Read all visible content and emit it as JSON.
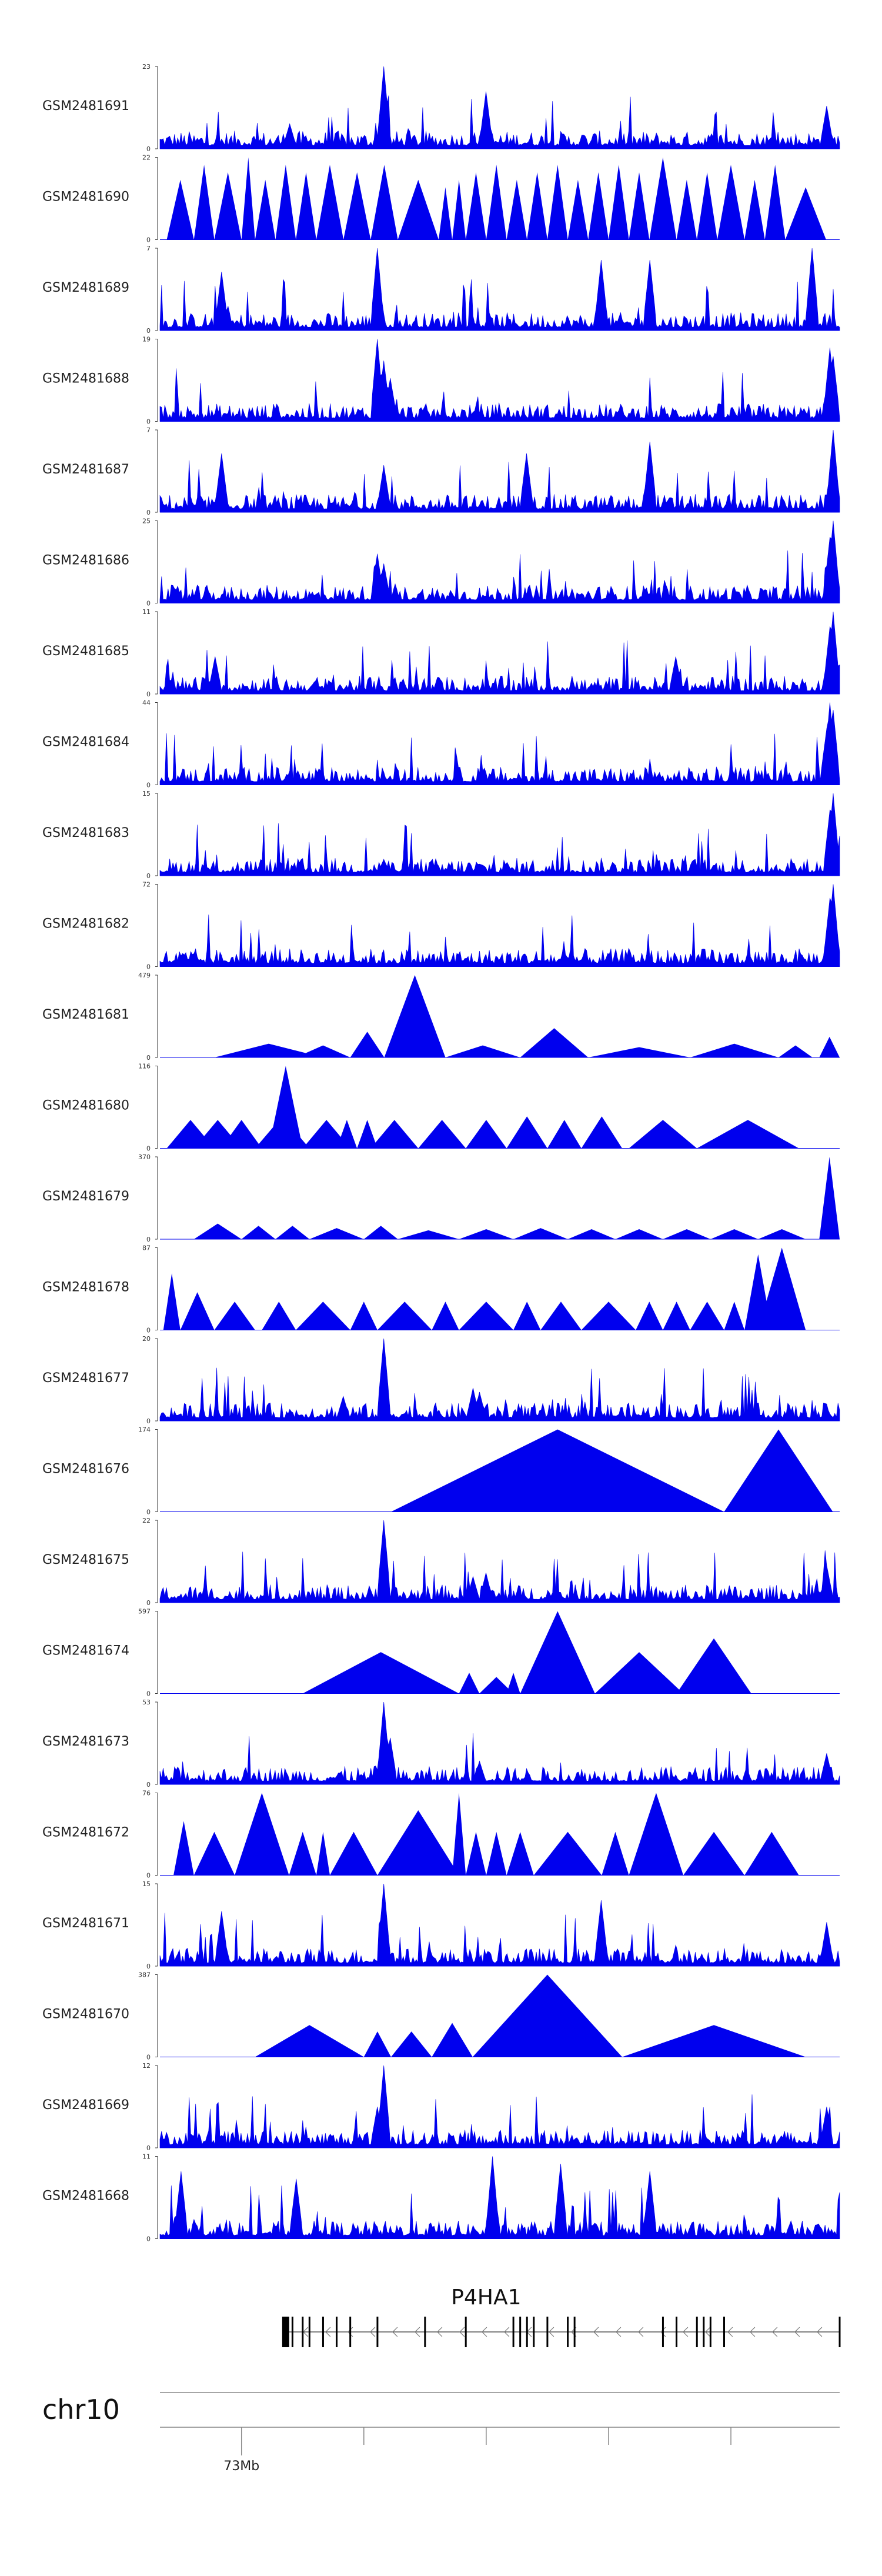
{
  "colors": {
    "signal": "#0000ee",
    "axis": "#333333",
    "gene": "#000000"
  },
  "chart_data": {
    "type": "area",
    "tracks": [
      {
        "name": "GSM2481691",
        "ymax": "23",
        "ymin": "0",
        "style": "dense",
        "peaks": [
          [
            0.33,
            23
          ],
          [
            0.46,
            3
          ],
          [
            0.19,
            7
          ],
          [
            0.48,
            16
          ],
          [
            0.98,
            12
          ]
        ]
      },
      {
        "name": "GSM2481690",
        "ymax": "22",
        "ymin": "0",
        "style": "tri",
        "segments": [
          [
            0.01,
            0.05,
            16
          ],
          [
            0.05,
            0.08,
            20
          ],
          [
            0.08,
            0.12,
            18
          ],
          [
            0.12,
            0.14,
            22
          ],
          [
            0.14,
            0.17,
            16
          ],
          [
            0.17,
            0.2,
            20
          ],
          [
            0.2,
            0.23,
            18
          ],
          [
            0.23,
            0.27,
            20
          ],
          [
            0.27,
            0.31,
            18
          ],
          [
            0.31,
            0.35,
            20
          ],
          [
            0.35,
            0.41,
            16
          ],
          [
            0.41,
            0.43,
            14
          ],
          [
            0.43,
            0.45,
            16
          ],
          [
            0.45,
            0.48,
            18
          ],
          [
            0.48,
            0.51,
            20
          ],
          [
            0.51,
            0.54,
            16
          ],
          [
            0.54,
            0.57,
            18
          ],
          [
            0.57,
            0.6,
            20
          ],
          [
            0.6,
            0.63,
            16
          ],
          [
            0.63,
            0.66,
            18
          ],
          [
            0.66,
            0.69,
            20
          ],
          [
            0.69,
            0.72,
            18
          ],
          [
            0.72,
            0.76,
            22
          ],
          [
            0.76,
            0.79,
            16
          ],
          [
            0.79,
            0.82,
            18
          ],
          [
            0.82,
            0.86,
            20
          ],
          [
            0.86,
            0.89,
            16
          ],
          [
            0.89,
            0.92,
            20
          ],
          [
            0.92,
            0.98,
            14
          ]
        ]
      },
      {
        "name": "GSM2481689",
        "ymax": "7",
        "ymin": "0",
        "style": "dense",
        "peaks": [
          [
            0.32,
            7
          ],
          [
            0.65,
            6
          ],
          [
            0.96,
            7
          ],
          [
            0.09,
            5
          ],
          [
            0.72,
            6
          ]
        ]
      },
      {
        "name": "GSM2481688",
        "ymax": "19",
        "ymin": "0",
        "style": "dense",
        "peaks": [
          [
            0.32,
            19
          ],
          [
            0.33,
            14
          ],
          [
            0.34,
            10
          ],
          [
            0.985,
            17
          ],
          [
            0.99,
            15
          ]
        ]
      },
      {
        "name": "GSM2481687",
        "ymax": "7",
        "ymin": "0",
        "style": "dense",
        "peaks": [
          [
            0.99,
            7
          ],
          [
            0.72,
            6
          ],
          [
            0.09,
            5
          ],
          [
            0.54,
            5
          ],
          [
            0.33,
            4
          ]
        ]
      },
      {
        "name": "GSM2481686",
        "ymax": "25",
        "ymin": "0",
        "style": "dense",
        "peaks": [
          [
            0.32,
            15
          ],
          [
            0.33,
            12
          ],
          [
            0.99,
            25
          ],
          [
            0.985,
            20
          ]
        ]
      },
      {
        "name": "GSM2481685",
        "ymax": "11",
        "ymin": "0",
        "style": "dense",
        "peaks": [
          [
            0.99,
            11
          ],
          [
            0.985,
            9
          ],
          [
            0.08,
            5
          ],
          [
            0.76,
            5
          ]
        ]
      },
      {
        "name": "GSM2481684",
        "ymax": "44",
        "ymin": "0",
        "style": "dense",
        "peaks": [
          [
            0.985,
            44
          ],
          [
            0.99,
            40
          ],
          [
            0.98,
            30
          ],
          [
            0.33,
            5
          ]
        ]
      },
      {
        "name": "GSM2481683",
        "ymax": "15",
        "ymin": "0",
        "style": "dense",
        "peaks": [
          [
            0.99,
            15
          ],
          [
            0.985,
            12
          ],
          [
            0.33,
            3
          ]
        ]
      },
      {
        "name": "GSM2481682",
        "ymax": "72",
        "ymin": "0",
        "style": "dense",
        "peaks": [
          [
            0.99,
            72
          ],
          [
            0.985,
            60
          ],
          [
            0.52,
            5
          ]
        ]
      },
      {
        "name": "GSM2481681",
        "ymax": "479",
        "ymin": "0",
        "style": "tri",
        "segments": [
          [
            0.08,
            0.24,
            80
          ],
          [
            0.2,
            0.28,
            70
          ],
          [
            0.28,
            0.33,
            150
          ],
          [
            0.33,
            0.42,
            479
          ],
          [
            0.42,
            0.53,
            70
          ],
          [
            0.53,
            0.63,
            170
          ],
          [
            0.63,
            0.78,
            60
          ],
          [
            0.78,
            0.91,
            80
          ],
          [
            0.91,
            0.96,
            70
          ],
          [
            0.97,
            1.0,
            120
          ]
        ]
      },
      {
        "name": "GSM2481680",
        "ymax": "116",
        "ymin": "0",
        "style": "tri",
        "segments": [
          [
            0.01,
            0.08,
            40
          ],
          [
            0.05,
            0.12,
            40
          ],
          [
            0.09,
            0.15,
            40
          ],
          [
            0.14,
            0.22,
            45
          ],
          [
            0.16,
            0.21,
            116
          ],
          [
            0.21,
            0.28,
            40
          ],
          [
            0.26,
            0.29,
            40
          ],
          [
            0.29,
            0.32,
            40
          ],
          [
            0.31,
            0.38,
            40
          ],
          [
            0.38,
            0.45,
            40
          ],
          [
            0.45,
            0.51,
            40
          ],
          [
            0.51,
            0.57,
            45
          ],
          [
            0.57,
            0.62,
            40
          ],
          [
            0.62,
            0.68,
            45
          ],
          [
            0.69,
            0.79,
            40
          ],
          [
            0.79,
            0.94,
            40
          ]
        ]
      },
      {
        "name": "GSM2481679",
        "ymax": "370",
        "ymin": "0",
        "style": "tri",
        "segments": [
          [
            0.05,
            0.12,
            70
          ],
          [
            0.12,
            0.17,
            60
          ],
          [
            0.17,
            0.22,
            60
          ],
          [
            0.22,
            0.3,
            50
          ],
          [
            0.3,
            0.35,
            60
          ],
          [
            0.35,
            0.44,
            40
          ],
          [
            0.44,
            0.52,
            45
          ],
          [
            0.52,
            0.6,
            50
          ],
          [
            0.6,
            0.67,
            45
          ],
          [
            0.67,
            0.74,
            45
          ],
          [
            0.74,
            0.81,
            45
          ],
          [
            0.81,
            0.88,
            45
          ],
          [
            0.88,
            0.95,
            45
          ],
          [
            0.97,
            1.0,
            370
          ]
        ]
      },
      {
        "name": "GSM2481678",
        "ymax": "87",
        "ymin": "0",
        "style": "tri",
        "segments": [
          [
            0.005,
            0.03,
            60
          ],
          [
            0.03,
            0.08,
            40
          ],
          [
            0.08,
            0.14,
            30
          ],
          [
            0.15,
            0.2,
            30
          ],
          [
            0.2,
            0.28,
            30
          ],
          [
            0.28,
            0.32,
            30
          ],
          [
            0.32,
            0.4,
            30
          ],
          [
            0.4,
            0.44,
            30
          ],
          [
            0.44,
            0.52,
            30
          ],
          [
            0.52,
            0.56,
            30
          ],
          [
            0.56,
            0.62,
            30
          ],
          [
            0.62,
            0.7,
            30
          ],
          [
            0.7,
            0.74,
            30
          ],
          [
            0.74,
            0.78,
            30
          ],
          [
            0.78,
            0.83,
            30
          ],
          [
            0.83,
            0.86,
            30
          ],
          [
            0.86,
            0.9,
            80
          ],
          [
            0.88,
            0.95,
            87
          ]
        ]
      },
      {
        "name": "GSM2481677",
        "ymax": "20",
        "ymin": "0",
        "style": "dense",
        "peaks": [
          [
            0.33,
            20
          ],
          [
            0.46,
            8
          ],
          [
            0.27,
            6
          ],
          [
            0.47,
            7
          ]
        ]
      },
      {
        "name": "GSM2481676",
        "ymax": "174",
        "ymin": "0",
        "style": "tri",
        "segments": [
          [
            0.34,
            0.83,
            174
          ],
          [
            0.83,
            0.99,
            174
          ]
        ]
      },
      {
        "name": "GSM2481675",
        "ymax": "22",
        "ymin": "0",
        "style": "dense",
        "peaks": [
          [
            0.33,
            22
          ],
          [
            0.98,
            10
          ],
          [
            0.46,
            7
          ],
          [
            0.48,
            8
          ]
        ]
      },
      {
        "name": "GSM2481674",
        "ymax": "597",
        "ymin": "0",
        "style": "tri",
        "segments": [
          [
            0.21,
            0.44,
            300
          ],
          [
            0.44,
            0.47,
            150
          ],
          [
            0.47,
            0.52,
            120
          ],
          [
            0.51,
            0.53,
            150
          ],
          [
            0.53,
            0.64,
            597
          ],
          [
            0.64,
            0.77,
            300
          ],
          [
            0.76,
            0.87,
            400
          ]
        ]
      },
      {
        "name": "GSM2481673",
        "ymax": "53",
        "ymin": "0",
        "style": "dense",
        "peaks": [
          [
            0.33,
            53
          ],
          [
            0.34,
            30
          ],
          [
            0.98,
            20
          ],
          [
            0.47,
            15
          ]
        ]
      },
      {
        "name": "GSM2481672",
        "ymax": "76",
        "ymin": "0",
        "style": "tri",
        "segments": [
          [
            0.02,
            0.05,
            50
          ],
          [
            0.05,
            0.11,
            40
          ],
          [
            0.11,
            0.19,
            76
          ],
          [
            0.19,
            0.23,
            40
          ],
          [
            0.23,
            0.25,
            40
          ],
          [
            0.25,
            0.32,
            40
          ],
          [
            0.32,
            0.44,
            60
          ],
          [
            0.43,
            0.45,
            76
          ],
          [
            0.45,
            0.48,
            40
          ],
          [
            0.48,
            0.51,
            40
          ],
          [
            0.51,
            0.55,
            40
          ],
          [
            0.55,
            0.65,
            40
          ],
          [
            0.65,
            0.69,
            40
          ],
          [
            0.69,
            0.77,
            76
          ],
          [
            0.77,
            0.86,
            40
          ],
          [
            0.86,
            0.94,
            40
          ]
        ]
      },
      {
        "name": "GSM2481671",
        "ymax": "15",
        "ymin": "0",
        "style": "dense",
        "peaks": [
          [
            0.33,
            15
          ],
          [
            0.65,
            12
          ],
          [
            0.98,
            8
          ],
          [
            0.09,
            10
          ]
        ]
      },
      {
        "name": "GSM2481670",
        "ymax": "387",
        "ymin": "0",
        "style": "tri",
        "segments": [
          [
            0.14,
            0.3,
            150
          ],
          [
            0.3,
            0.34,
            120
          ],
          [
            0.34,
            0.4,
            120
          ],
          [
            0.4,
            0.46,
            160
          ],
          [
            0.46,
            0.68,
            387
          ],
          [
            0.68,
            0.95,
            150
          ]
        ]
      },
      {
        "name": "GSM2481669",
        "ymax": "12",
        "ymin": "0",
        "style": "dense",
        "peaks": [
          [
            0.33,
            12
          ],
          [
            0.32,
            6
          ],
          [
            0.98,
            6
          ]
        ]
      },
      {
        "name": "GSM2481668",
        "ymax": "11",
        "ymin": "0",
        "style": "dense",
        "peaks": [
          [
            0.49,
            11
          ],
          [
            0.59,
            10
          ],
          [
            0.72,
            9
          ],
          [
            0.03,
            9
          ],
          [
            0.2,
            8
          ]
        ]
      }
    ],
    "gene": {
      "name": "P4HA1",
      "start": 0.185,
      "end": 1.0,
      "exons": [
        0.185,
        0.195,
        0.21,
        0.22,
        0.24,
        0.26,
        0.28,
        0.32,
        0.39,
        0.45,
        0.52,
        0.53,
        0.54,
        0.55,
        0.57,
        0.6,
        0.61,
        0.74,
        0.76,
        0.79,
        0.8,
        0.81,
        0.83,
        1.0
      ]
    },
    "axis": {
      "chromosome": "chr10",
      "ticks": [
        {
          "pos": 0.12,
          "label": "73Mb"
        },
        {
          "pos": 0.3,
          "label": ""
        },
        {
          "pos": 0.48,
          "label": ""
        },
        {
          "pos": 0.66,
          "label": ""
        },
        {
          "pos": 0.84,
          "label": ""
        }
      ]
    }
  }
}
